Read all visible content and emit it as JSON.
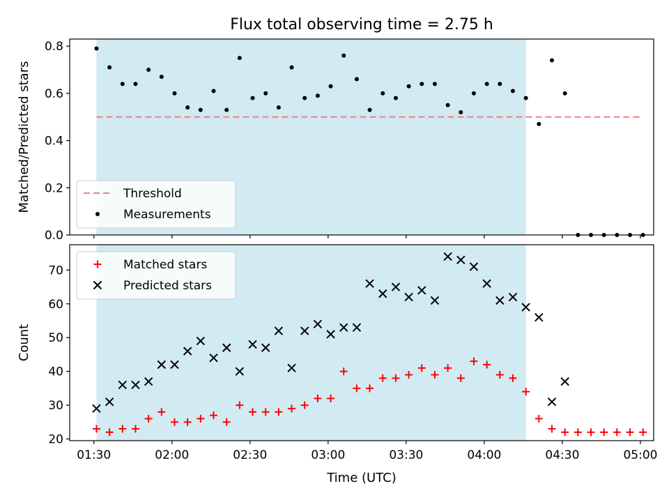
{
  "title": "Flux total observing time = 2.75 h",
  "xlabel": "Time (UTC)",
  "x_ticks": [
    "01:30",
    "02:00",
    "02:30",
    "03:00",
    "03:30",
    "04:00",
    "04:30",
    "05:00"
  ],
  "shaded_region": {
    "color": "#add8e6",
    "x_start": "01:31",
    "x_end": "04:16"
  },
  "chart_data": [
    {
      "type": "scatter",
      "ylabel": "Matched/Predicted stars",
      "ylim": [
        0.0,
        0.83
      ],
      "y_ticks": [
        "0.0",
        "0.2",
        "0.4",
        "0.6",
        "0.8"
      ],
      "legend_loc": "lower-left",
      "threshold": {
        "name": "Threshold",
        "value": 0.5,
        "x_start": "01:31",
        "x_end": "05:00",
        "color": "#f08080"
      },
      "series": [
        {
          "name": "Measurements",
          "color": "#000000",
          "points": [
            [
              "01:31",
              0.79
            ],
            [
              "01:36",
              0.71
            ],
            [
              "01:41",
              0.64
            ],
            [
              "01:46",
              0.64
            ],
            [
              "01:51",
              0.7
            ],
            [
              "01:56",
              0.67
            ],
            [
              "02:01",
              0.6
            ],
            [
              "02:06",
              0.54
            ],
            [
              "02:11",
              0.53
            ],
            [
              "02:16",
              0.61
            ],
            [
              "02:21",
              0.53
            ],
            [
              "02:26",
              0.75
            ],
            [
              "02:31",
              0.58
            ],
            [
              "02:36",
              0.6
            ],
            [
              "02:41",
              0.54
            ],
            [
              "02:46",
              0.71
            ],
            [
              "02:51",
              0.58
            ],
            [
              "02:56",
              0.59
            ],
            [
              "03:01",
              0.63
            ],
            [
              "03:06",
              0.76
            ],
            [
              "03:11",
              0.66
            ],
            [
              "03:16",
              0.53
            ],
            [
              "03:21",
              0.6
            ],
            [
              "03:26",
              0.58
            ],
            [
              "03:31",
              0.63
            ],
            [
              "03:36",
              0.64
            ],
            [
              "03:41",
              0.64
            ],
            [
              "03:46",
              0.55
            ],
            [
              "03:51",
              0.52
            ],
            [
              "03:56",
              0.6
            ],
            [
              "04:01",
              0.64
            ],
            [
              "04:06",
              0.64
            ],
            [
              "04:11",
              0.61
            ],
            [
              "04:16",
              0.58
            ],
            [
              "04:21",
              0.47
            ],
            [
              "04:26",
              0.74
            ],
            [
              "04:31",
              0.6
            ],
            [
              "04:36",
              0.0
            ],
            [
              "04:41",
              0.0
            ],
            [
              "04:46",
              0.0
            ],
            [
              "04:51",
              0.0
            ],
            [
              "04:56",
              0.0
            ],
            [
              "05:01",
              0.0
            ]
          ]
        }
      ]
    },
    {
      "type": "scatter",
      "ylabel": "Count",
      "ylim": [
        19.5,
        77.5
      ],
      "y_ticks": [
        "20",
        "30",
        "40",
        "50",
        "60",
        "70"
      ],
      "legend_loc": "upper-left",
      "series": [
        {
          "name": "Matched stars",
          "marker": "plus",
          "color": "#ff0000",
          "points": [
            [
              "01:31",
              23
            ],
            [
              "01:36",
              22
            ],
            [
              "01:41",
              23
            ],
            [
              "01:46",
              23
            ],
            [
              "01:51",
              26
            ],
            [
              "01:56",
              28
            ],
            [
              "02:01",
              25
            ],
            [
              "02:06",
              25
            ],
            [
              "02:11",
              26
            ],
            [
              "02:16",
              27
            ],
            [
              "02:21",
              25
            ],
            [
              "02:26",
              30
            ],
            [
              "02:31",
              28
            ],
            [
              "02:36",
              28
            ],
            [
              "02:41",
              28
            ],
            [
              "02:46",
              29
            ],
            [
              "02:51",
              30
            ],
            [
              "02:56",
              32
            ],
            [
              "03:01",
              32
            ],
            [
              "03:06",
              40
            ],
            [
              "03:11",
              35
            ],
            [
              "03:16",
              35
            ],
            [
              "03:21",
              38
            ],
            [
              "03:26",
              38
            ],
            [
              "03:31",
              39
            ],
            [
              "03:36",
              41
            ],
            [
              "03:41",
              39
            ],
            [
              "03:46",
              41
            ],
            [
              "03:51",
              38
            ],
            [
              "03:56",
              43
            ],
            [
              "04:01",
              42
            ],
            [
              "04:06",
              39
            ],
            [
              "04:11",
              38
            ],
            [
              "04:16",
              34
            ],
            [
              "04:21",
              26
            ],
            [
              "04:26",
              23
            ],
            [
              "04:31",
              22
            ],
            [
              "04:36",
              22
            ],
            [
              "04:41",
              22
            ],
            [
              "04:46",
              22
            ],
            [
              "04:51",
              22
            ],
            [
              "04:56",
              22
            ],
            [
              "05:01",
              22
            ]
          ]
        },
        {
          "name": "Predicted stars",
          "marker": "x",
          "color": "#000000",
          "points": [
            [
              "01:31",
              29
            ],
            [
              "01:36",
              31
            ],
            [
              "01:41",
              36
            ],
            [
              "01:46",
              36
            ],
            [
              "01:51",
              37
            ],
            [
              "01:56",
              42
            ],
            [
              "02:01",
              42
            ],
            [
              "02:06",
              46
            ],
            [
              "02:11",
              49
            ],
            [
              "02:16",
              44
            ],
            [
              "02:21",
              47
            ],
            [
              "02:26",
              40
            ],
            [
              "02:31",
              48
            ],
            [
              "02:36",
              47
            ],
            [
              "02:41",
              52
            ],
            [
              "02:46",
              41
            ],
            [
              "02:51",
              52
            ],
            [
              "02:56",
              54
            ],
            [
              "03:01",
              51
            ],
            [
              "03:06",
              53
            ],
            [
              "03:11",
              53
            ],
            [
              "03:16",
              66
            ],
            [
              "03:21",
              63
            ],
            [
              "03:26",
              65
            ],
            [
              "03:31",
              62
            ],
            [
              "03:36",
              64
            ],
            [
              "03:41",
              61
            ],
            [
              "03:46",
              74
            ],
            [
              "03:51",
              73
            ],
            [
              "03:56",
              71
            ],
            [
              "04:01",
              66
            ],
            [
              "04:06",
              61
            ],
            [
              "04:11",
              62
            ],
            [
              "04:16",
              59
            ],
            [
              "04:21",
              56
            ],
            [
              "04:26",
              31
            ],
            [
              "04:31",
              37
            ]
          ]
        }
      ]
    }
  ]
}
